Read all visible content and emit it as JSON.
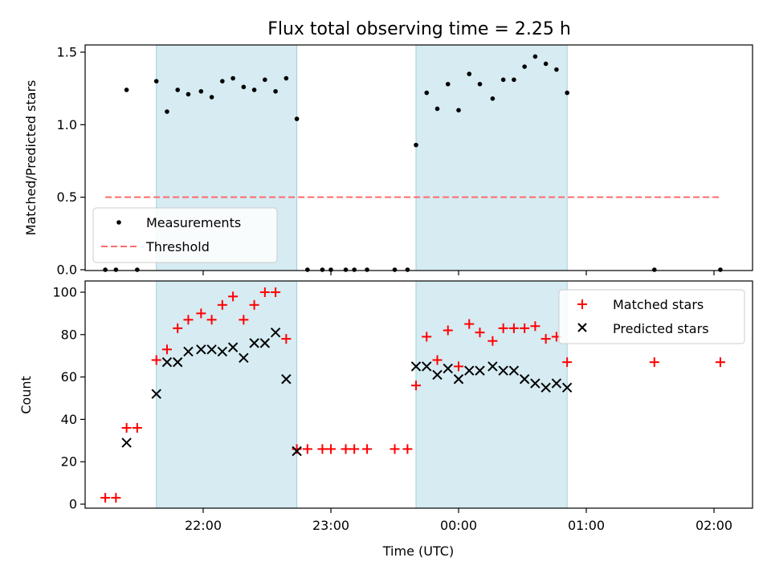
{
  "chart_data": [
    {
      "type": "scatter",
      "title": "Flux total observing time = 2.25 h",
      "ylabel": "Matched/Predicted stars",
      "xlabel": "",
      "ylim": [
        0,
        1.55
      ],
      "yticks": [
        "0.0",
        "0.5",
        "1.0",
        "1.5"
      ],
      "ytick_values": [
        0,
        0.5,
        1.0,
        1.5
      ],
      "shaded_intervals": [
        [
          "21:38",
          "22:44"
        ],
        [
          "23:40",
          "00:51"
        ]
      ],
      "grid": false,
      "legend_position": "lower-left",
      "series": [
        {
          "name": "Measurements",
          "marker": "dot",
          "color": "#000000",
          "points": [
            [
              "21:14",
              0
            ],
            [
              "21:19",
              0
            ],
            [
              "21:24",
              1.24
            ],
            [
              "21:29",
              0
            ],
            [
              "21:38",
              1.3
            ],
            [
              "21:43",
              1.09
            ],
            [
              "21:48",
              1.24
            ],
            [
              "21:53",
              1.21
            ],
            [
              "21:59",
              1.23
            ],
            [
              "22:04",
              1.19
            ],
            [
              "22:09",
              1.3
            ],
            [
              "22:14",
              1.32
            ],
            [
              "22:19",
              1.26
            ],
            [
              "22:24",
              1.24
            ],
            [
              "22:29",
              1.31
            ],
            [
              "22:34",
              1.23
            ],
            [
              "22:39",
              1.32
            ],
            [
              "22:44",
              1.04
            ],
            [
              "22:49",
              0
            ],
            [
              "22:56",
              0
            ],
            [
              "23:00",
              0
            ],
            [
              "23:07",
              0
            ],
            [
              "23:11",
              0
            ],
            [
              "23:17",
              0
            ],
            [
              "23:30",
              0
            ],
            [
              "23:36",
              0
            ],
            [
              "23:40",
              0.86
            ],
            [
              "23:45",
              1.22
            ],
            [
              "23:50",
              1.11
            ],
            [
              "23:55",
              1.28
            ],
            [
              "00:00",
              1.1
            ],
            [
              "00:05",
              1.35
            ],
            [
              "00:10",
              1.28
            ],
            [
              "00:16",
              1.18
            ],
            [
              "00:21",
              1.31
            ],
            [
              "00:26",
              1.31
            ],
            [
              "00:31",
              1.4
            ],
            [
              "00:36",
              1.47
            ],
            [
              "00:41",
              1.42
            ],
            [
              "00:46",
              1.38
            ],
            [
              "00:51",
              1.22
            ],
            [
              "01:32",
              0
            ],
            [
              "02:03",
              0
            ]
          ]
        },
        {
          "name": "Threshold",
          "style": "dashed",
          "color": "#ff6a6a",
          "x": [
            "21:14",
            "02:03"
          ],
          "values": [
            0.5,
            0.5
          ]
        }
      ]
    },
    {
      "type": "scatter",
      "title": "",
      "ylabel": "Count",
      "xlabel": "Time (UTC)",
      "ylim": [
        -2,
        105
      ],
      "yticks": [
        "0",
        "20",
        "40",
        "60",
        "80",
        "100"
      ],
      "ytick_values": [
        0,
        20,
        40,
        60,
        80,
        100
      ],
      "xticks": [
        "22:00",
        "23:00",
        "00:00",
        "01:00",
        "02:00"
      ],
      "shaded_intervals": [
        [
          "21:38",
          "22:44"
        ],
        [
          "23:40",
          "00:51"
        ]
      ],
      "grid": false,
      "legend_position": "top-right",
      "series": [
        {
          "name": "Matched stars",
          "marker": "plus",
          "color": "#ff0000",
          "points": [
            [
              "21:14",
              3
            ],
            [
              "21:19",
              3
            ],
            [
              "21:24",
              36
            ],
            [
              "21:29",
              36
            ],
            [
              "21:38",
              68
            ],
            [
              "21:43",
              73
            ],
            [
              "21:48",
              83
            ],
            [
              "21:53",
              87
            ],
            [
              "21:59",
              90
            ],
            [
              "22:04",
              87
            ],
            [
              "22:09",
              94
            ],
            [
              "22:14",
              98
            ],
            [
              "22:19",
              87
            ],
            [
              "22:24",
              94
            ],
            [
              "22:29",
              100
            ],
            [
              "22:34",
              100
            ],
            [
              "22:39",
              78
            ],
            [
              "22:44",
              26
            ],
            [
              "22:49",
              26
            ],
            [
              "22:56",
              26
            ],
            [
              "23:00",
              26
            ],
            [
              "23:07",
              26
            ],
            [
              "23:11",
              26
            ],
            [
              "23:17",
              26
            ],
            [
              "23:30",
              26
            ],
            [
              "23:36",
              26
            ],
            [
              "23:40",
              56
            ],
            [
              "23:45",
              79
            ],
            [
              "23:50",
              68
            ],
            [
              "23:55",
              82
            ],
            [
              "00:00",
              65
            ],
            [
              "00:05",
              85
            ],
            [
              "00:10",
              81
            ],
            [
              "00:16",
              77
            ],
            [
              "00:21",
              83
            ],
            [
              "00:26",
              83
            ],
            [
              "00:31",
              83
            ],
            [
              "00:36",
              84
            ],
            [
              "00:41",
              78
            ],
            [
              "00:46",
              79
            ],
            [
              "00:51",
              67
            ],
            [
              "01:32",
              67
            ],
            [
              "02:03",
              67
            ]
          ]
        },
        {
          "name": "Predicted stars",
          "marker": "x",
          "color": "#000000",
          "points": [
            [
              "21:24",
              29
            ],
            [
              "21:38",
              52
            ],
            [
              "21:43",
              67
            ],
            [
              "21:48",
              67
            ],
            [
              "21:53",
              72
            ],
            [
              "21:59",
              73
            ],
            [
              "22:04",
              73
            ],
            [
              "22:09",
              72
            ],
            [
              "22:14",
              74
            ],
            [
              "22:19",
              69
            ],
            [
              "22:24",
              76
            ],
            [
              "22:29",
              76
            ],
            [
              "22:34",
              81
            ],
            [
              "22:39",
              59
            ],
            [
              "22:44",
              25
            ],
            [
              "23:40",
              65
            ],
            [
              "23:45",
              65
            ],
            [
              "23:50",
              61
            ],
            [
              "23:55",
              64
            ],
            [
              "00:00",
              59
            ],
            [
              "00:05",
              63
            ],
            [
              "00:10",
              63
            ],
            [
              "00:16",
              65
            ],
            [
              "00:21",
              63
            ],
            [
              "00:26",
              63
            ],
            [
              "00:31",
              59
            ],
            [
              "00:36",
              57
            ],
            [
              "00:41",
              55
            ],
            [
              "00:46",
              57
            ],
            [
              "00:51",
              55
            ]
          ]
        }
      ]
    }
  ]
}
